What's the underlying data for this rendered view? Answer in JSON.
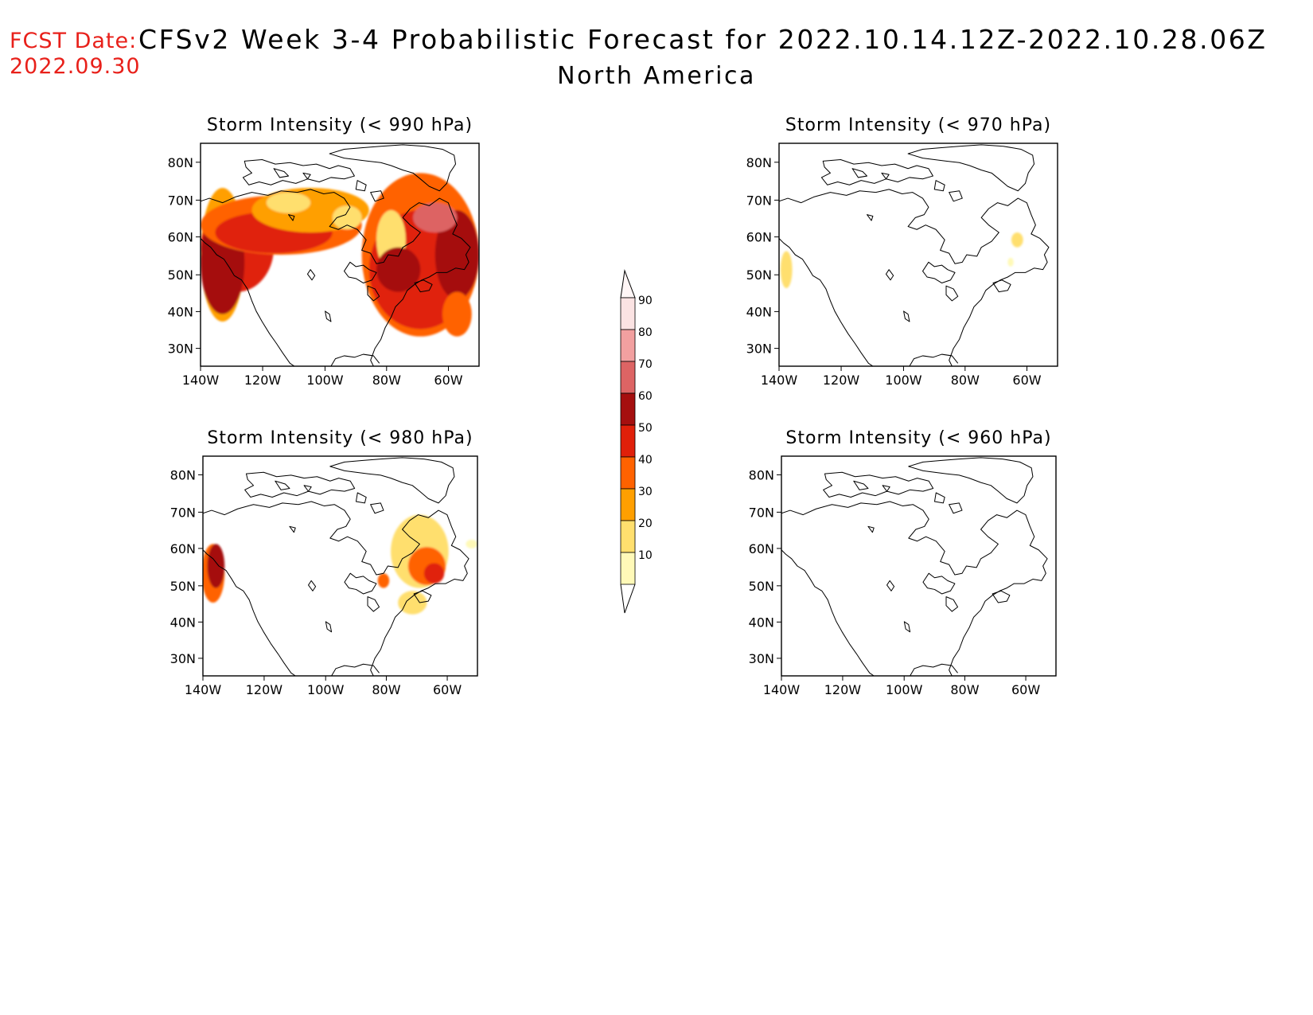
{
  "header": {
    "fcst_label": "FCST Date:",
    "fcst_date": "2022.09.30",
    "title": "CFSv2 Week 3-4 Probabilistic Forecast for 2022.10.14.12Z-2022.10.28.06Z",
    "region": "North America"
  },
  "axes": {
    "lat_ticks": [
      "80N",
      "70N",
      "60N",
      "50N",
      "40N",
      "30N"
    ],
    "lon_ticks": [
      "140W",
      "120W",
      "100W",
      "80W",
      "60W"
    ]
  },
  "panels": [
    {
      "id": "p990",
      "title": "Storm Intensity (< 990 hPa)",
      "threshold_hpa": 990
    },
    {
      "id": "p970",
      "title": "Storm Intensity (< 970 hPa)",
      "threshold_hpa": 970
    },
    {
      "id": "p980",
      "title": "Storm Intensity (< 980 hPa)",
      "threshold_hpa": 980
    },
    {
      "id": "p960",
      "title": "Storm Intensity (< 960 hPa)",
      "threshold_hpa": 960
    }
  ],
  "colorbar": {
    "labels": [
      "90",
      "80",
      "70",
      "60",
      "50",
      "40",
      "30",
      "20",
      "10"
    ],
    "colors": [
      "#fbe3e3",
      "#f2a0a0",
      "#dd6464",
      "#a50f0f",
      "#e0200a",
      "#ff6200",
      "#ff9f00",
      "#ffdf6e",
      "#fff9b8"
    ]
  }
}
